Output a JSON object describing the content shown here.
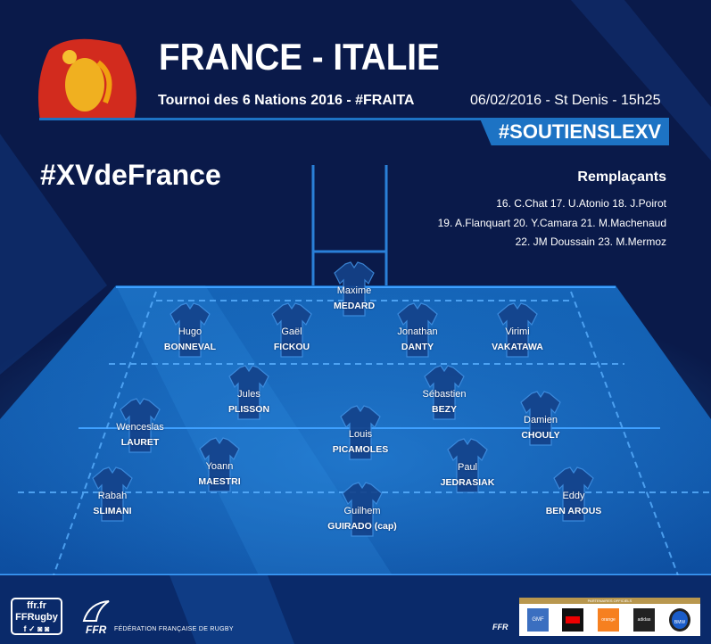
{
  "header": {
    "title": "FRANCE - ITALIE",
    "subtitle": "Tournoi des 6 Nations 2016 - #FRAITA",
    "match_info": "06/02/2016 - St Denis - 15h25",
    "hashtag_banner": "#SOUTIENSLEXV",
    "team_hashtag": "#XVdeFrance"
  },
  "substitutes": {
    "title": "Remplaçants",
    "lines": [
      "16. C.Chat 17. U.Atonio 18. J.Poirot",
      "19. A.Flanquart 20. Y.Camara 21. M.Machenaud",
      "22. JM Doussain 23. M.Mermoz"
    ]
  },
  "players": [
    {
      "first": "Maxime",
      "last": "MEDARD"
    },
    {
      "first": "Hugo",
      "last": "BONNEVAL"
    },
    {
      "first": "Gaël",
      "last": "FICKOU"
    },
    {
      "first": "Jonathan",
      "last": "DANTY"
    },
    {
      "first": "Virimi",
      "last": "VAKATAWA"
    },
    {
      "first": "Jules",
      "last": "PLISSON"
    },
    {
      "first": "Sébastien",
      "last": "BEZY"
    },
    {
      "first": "Wenceslas",
      "last": "LAURET"
    },
    {
      "first": "Damien",
      "last": "CHOULY"
    },
    {
      "first": "Louis",
      "last": "PICAMOLES"
    },
    {
      "first": "Yoann",
      "last": "MAESTRI"
    },
    {
      "first": "Paul",
      "last": "JEDRASIAK"
    },
    {
      "first": "Rabah",
      "last": "SLIMANI"
    },
    {
      "first": "Eddy",
      "last": "BEN AROUS"
    },
    {
      "first": "Guilhem",
      "last": "GUIRADO (cap)"
    }
  ],
  "footer": {
    "social_site": "ffr.fr",
    "social_handle": "FFRugby",
    "federation_abbr": "FFR",
    "federation_name": "FÉDÉRATION FRANÇAISE DE RUGBY",
    "partners_header": "PARTENAIRES OFFICIELS",
    "partners": [
      "GMF",
      "Société Générale",
      "orange",
      "adidas",
      "BMW"
    ]
  },
  "colors": {
    "background": "#0a1a4a",
    "accent": "#1d73c4",
    "field": "#1a6fc8",
    "crest": "#d22b1e"
  }
}
